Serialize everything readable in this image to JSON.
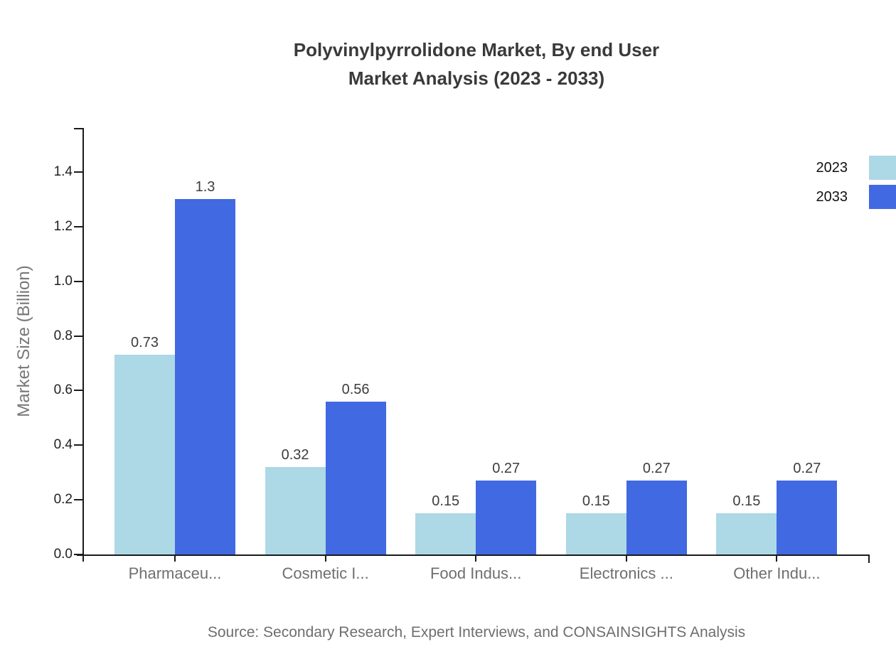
{
  "title": {
    "line1": "Polyvinylpyrrolidone Market, By end User",
    "line2": "Market Analysis (2023 - 2033)"
  },
  "source_note": "Source: Secondary Research, Expert Interviews, and CONSAINSIGHTS Analysis",
  "legend": {
    "position": "top-right",
    "entries": [
      {
        "label": "2023",
        "color": "#add8e6"
      },
      {
        "label": "2033",
        "color": "#4169e1"
      }
    ]
  },
  "chart_data": {
    "type": "bar",
    "title": "Polyvinylpyrrolidone Market, By end User Market Analysis (2023 - 2033)",
    "categories": [
      "Pharmaceu...",
      "Cosmetic I...",
      "Food Indus...",
      "Electronics ...",
      "Other Indu..."
    ],
    "series": [
      {
        "name": "2023",
        "color": "#add8e6",
        "values": [
          0.73,
          0.32,
          0.15,
          0.15,
          0.15
        ],
        "labels": [
          "0.73",
          "0.32",
          "0.15",
          "0.15",
          "0.15"
        ]
      },
      {
        "name": "2033",
        "color": "#4169e1",
        "values": [
          1.3,
          0.56,
          0.27,
          0.27,
          0.27
        ],
        "labels": [
          "1.3",
          "0.56",
          "0.27",
          "0.27",
          "0.27"
        ]
      }
    ],
    "xlabel": "",
    "ylabel": "Market Size (Billion)",
    "ylim": [
      0,
      1.56
    ],
    "yticks": [
      "0.0",
      "0.2",
      "0.4",
      "0.6",
      "0.8",
      "1.0",
      "1.2",
      "1.4"
    ],
    "ytick_values": [
      0.0,
      0.2,
      0.4,
      0.6,
      0.8,
      1.0,
      1.2,
      1.4
    ],
    "grid": false,
    "legend_position": "top-right",
    "bar_value_labels_shown": true
  },
  "colors": {
    "background": "#ffffff",
    "title_text": "#3a3a3a",
    "axis_line": "#1a1a1a",
    "tick_label": "#1f1f1f",
    "category_label": "#6f6f6f",
    "axis_title": "#777777",
    "value_label": "#3d3d3d",
    "source_text": "#6e6e6e",
    "series_2023": "#add8e6",
    "series_2033": "#4169e1"
  }
}
